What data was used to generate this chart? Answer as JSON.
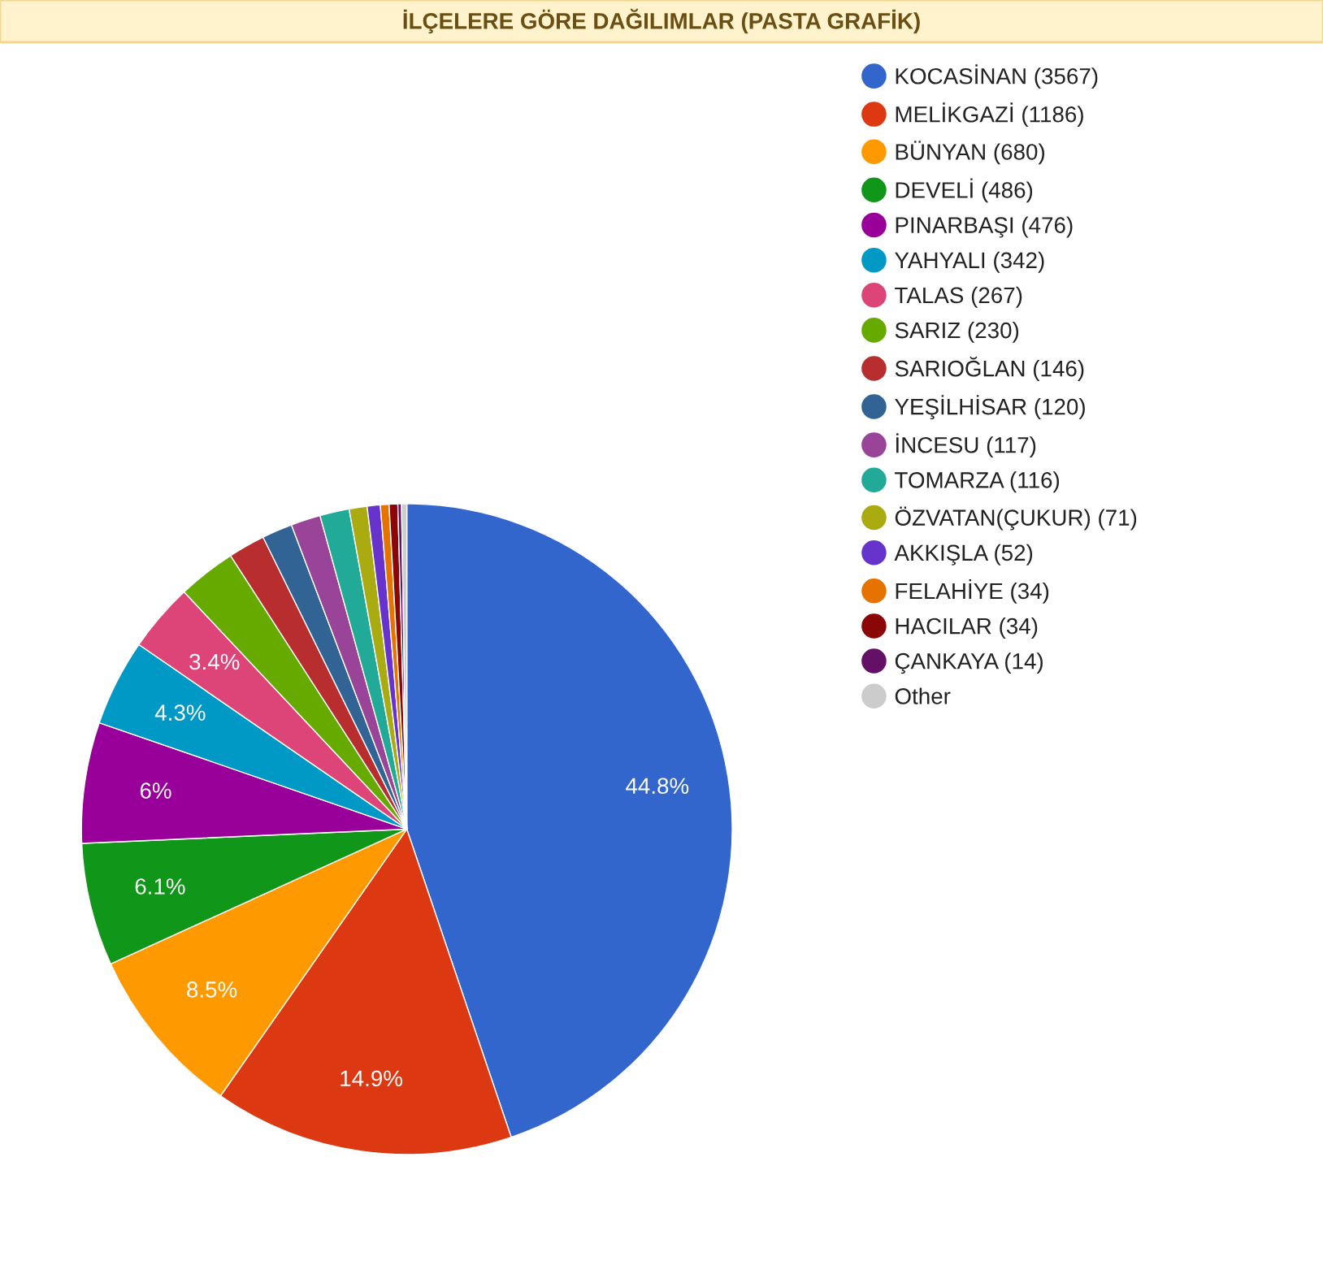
{
  "chart_data": {
    "type": "pie",
    "title": "İLÇELERE GÖRE DAĞILIMLAR (PASTA GRAFİK)",
    "categories": [
      "KOCASİNAN (3567)",
      "MELİKGAZİ (1186)",
      "BÜNYAN (680)",
      "DEVELİ (486)",
      "PINARBAŞI (476)",
      "YAHYALI (342)",
      "TALAS (267)",
      "SARIZ (230)",
      "SARIOĞLAN (146)",
      "YEŞİLHİSAR (120)",
      "İNCESU (117)",
      "TOMARZA (116)",
      "ÖZVATAN(ÇUKUR) (71)",
      "AKKIŞLA (52)",
      "FELAHİYE (34)",
      "HACILAR (34)",
      "ÇANKAYA (14)",
      "Other"
    ],
    "values": [
      44.8,
      14.9,
      8.5,
      6.1,
      6,
      4.3,
      3.4,
      2.89,
      1.83,
      1.51,
      1.47,
      1.46,
      0.89,
      0.65,
      0.43,
      0.43,
      0.18,
      0.26
    ],
    "colors": [
      "#3366cc",
      "#dc3912",
      "#ff9900",
      "#109618",
      "#990099",
      "#0099c6",
      "#dd4477",
      "#66aa00",
      "#b82e2e",
      "#316395",
      "#994499",
      "#22aa99",
      "#aaaa11",
      "#6633cc",
      "#e67300",
      "#8b0707",
      "#651067",
      "#cccccc"
    ],
    "value_labels": [
      "44.8%",
      "14.9%",
      "8.5%",
      "6.1%",
      "6%",
      "4.3%",
      "3.4%",
      null,
      null,
      null,
      null,
      null,
      null,
      null,
      null,
      null,
      null,
      null
    ],
    "legend": "right"
  }
}
